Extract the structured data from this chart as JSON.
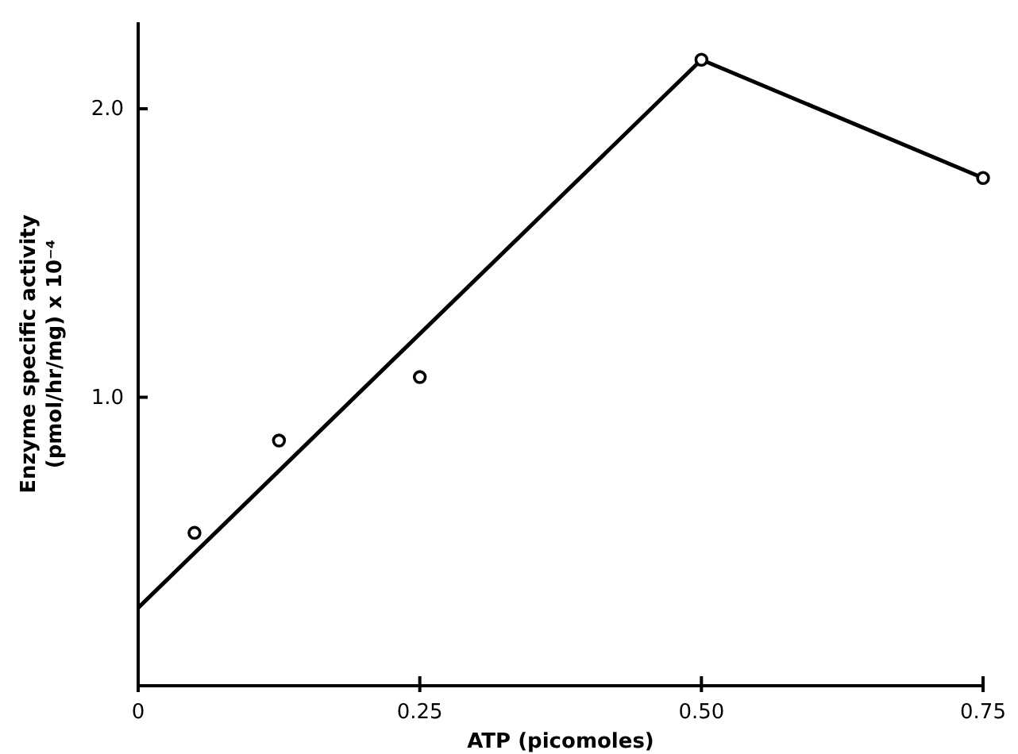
{
  "chart_data": {
    "type": "scatter",
    "xlabel": "ATP (picomoles)",
    "ylabel": "Enzyme specific activity\n(pmol/hr/mg) x 10⁻⁴",
    "xlim": [
      0,
      0.75
    ],
    "xticks": [
      0,
      {
        "value": 0.25,
        "label": "0.25"
      },
      {
        "value": 0.5,
        "label": "0.50"
      },
      {
        "value": 0.75,
        "label": "0.75"
      }
    ],
    "ylim": [
      0,
      2.3
    ],
    "yticks": [
      {
        "value": 1,
        "label": "1.0"
      },
      {
        "value": 2,
        "label": "2.0"
      }
    ],
    "grid": false,
    "series": [
      {
        "color": "#000000",
        "marker": "circle",
        "x": [
          0.05,
          0.125,
          0.25,
          0.5,
          0.75
        ],
        "values": [
          0.53,
          0.85,
          1.07,
          2.17,
          1.76
        ]
      },
      {
        "type": "line",
        "color": "#000000",
        "marker": "none",
        "line_style": "solid",
        "x": [
          0,
          0.5,
          0.75
        ],
        "values": [
          0.27,
          2.17,
          1.76
        ]
      }
    ]
  }
}
